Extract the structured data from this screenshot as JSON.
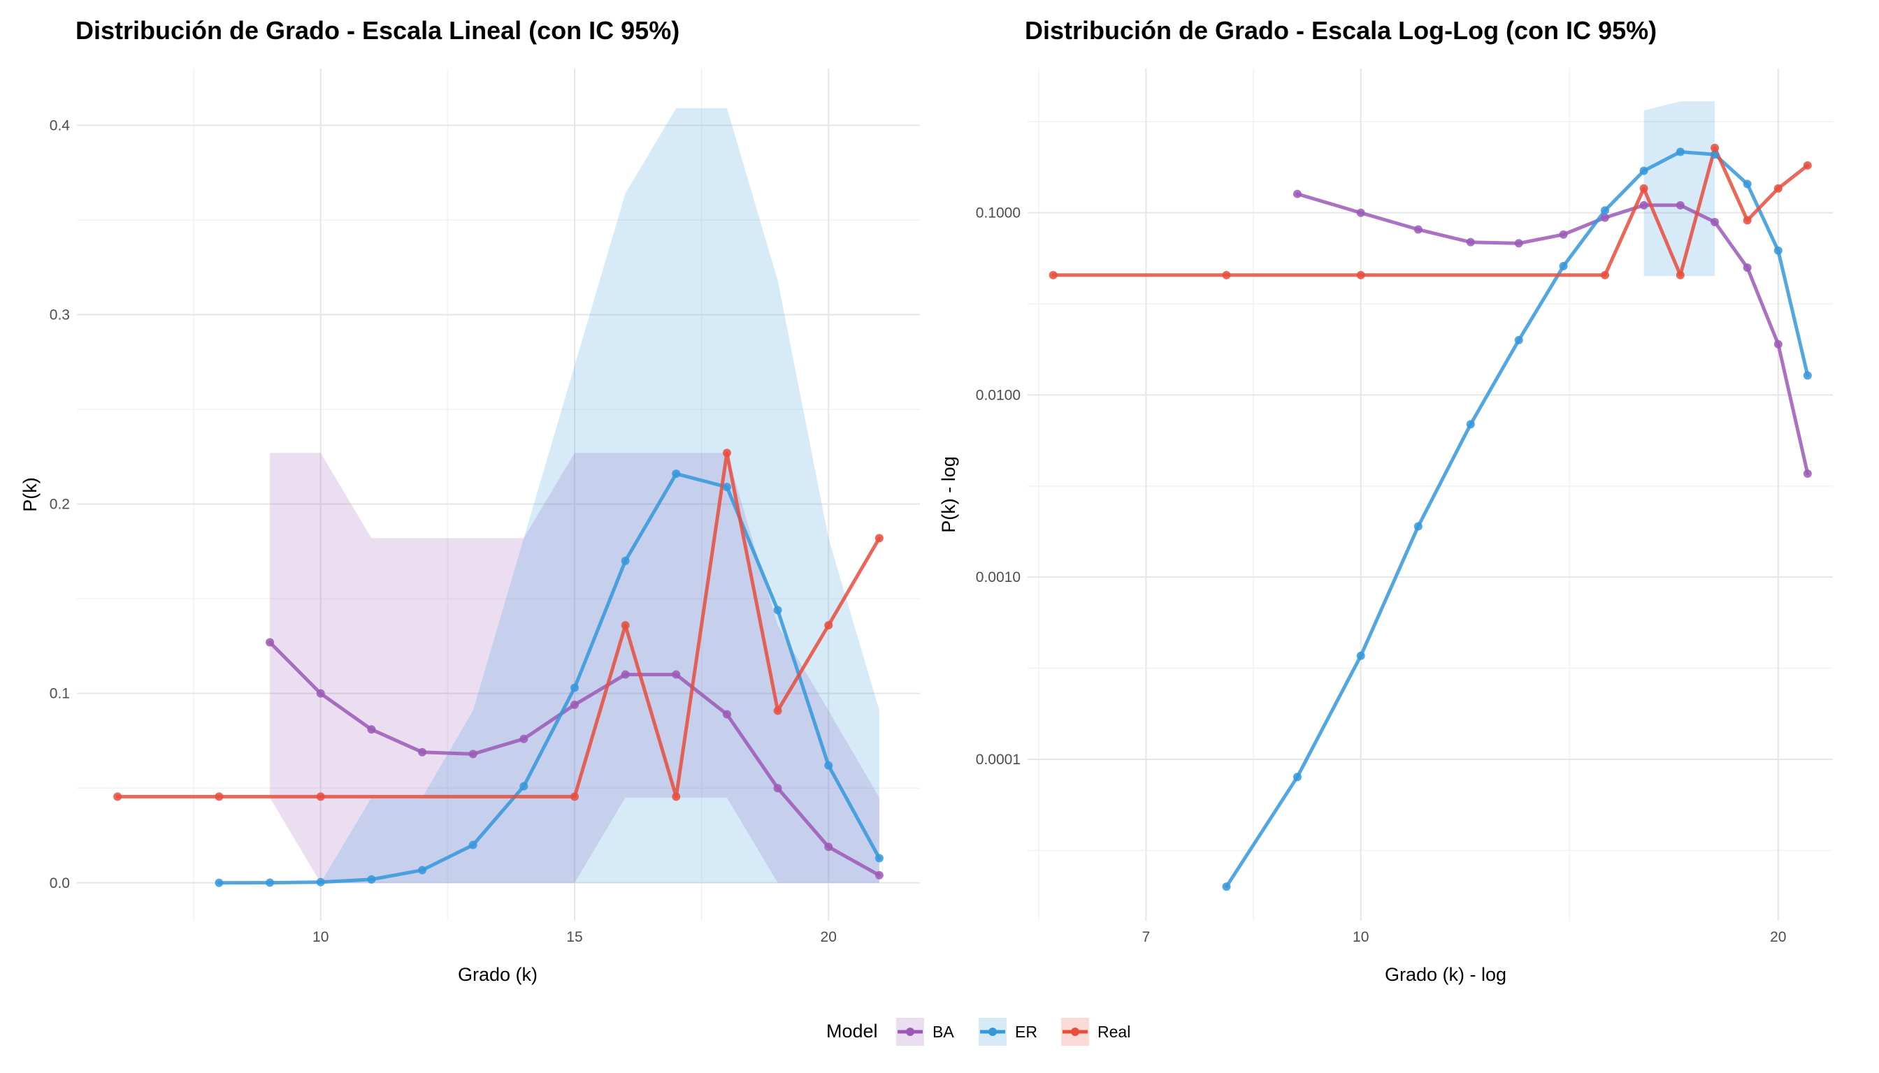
{
  "chart_data": [
    {
      "type": "line",
      "title": "Distribución de Grado - Escala Lineal (con IC 95%)",
      "xlabel": "Grado (k)",
      "ylabel": "P(k)",
      "xscale": "linear",
      "yscale": "linear",
      "xlim": [
        5.2,
        21.8
      ],
      "ylim": [
        -0.02,
        0.43
      ],
      "xticks": [
        10,
        15,
        20
      ],
      "xtick_labels": [
        "10",
        "15",
        "20"
      ],
      "yticks": [
        0.0,
        0.1,
        0.2,
        0.3,
        0.4
      ],
      "ytick_labels": [
        "0.0",
        "0.1",
        "0.2",
        "0.3",
        "0.4"
      ],
      "grid": true,
      "series": [
        {
          "name": "BA",
          "color": "#9b59b6",
          "x": [
            9,
            10,
            11,
            12,
            13,
            14,
            15,
            16,
            17,
            18,
            19,
            20,
            21
          ],
          "y": [
            0.127,
            0.1,
            0.081,
            0.069,
            0.068,
            0.076,
            0.094,
            0.11,
            0.11,
            0.089,
            0.05,
            0.019,
            0.004
          ],
          "ci_x": [
            9,
            10,
            11,
            12,
            13,
            14,
            15,
            16,
            17,
            18,
            19,
            20,
            21
          ],
          "ci_lower": [
            0.045,
            0.0,
            0.0,
            0.0,
            0.0,
            0.0,
            0.0,
            0.045,
            0.045,
            0.045,
            0.0,
            0.0,
            0.0
          ],
          "ci_upper": [
            0.227,
            0.227,
            0.182,
            0.182,
            0.182,
            0.182,
            0.227,
            0.227,
            0.227,
            0.227,
            0.136,
            0.091,
            0.045
          ]
        },
        {
          "name": "ER",
          "color": "#3498db",
          "x": [
            8,
            9,
            10,
            11,
            12,
            13,
            14,
            15,
            16,
            17,
            18,
            19,
            20,
            21
          ],
          "y": [
            2e-05,
            8e-05,
            0.00038,
            0.0018,
            0.0067,
            0.02,
            0.051,
            0.103,
            0.17,
            0.216,
            0.209,
            0.144,
            0.062,
            0.013
          ],
          "ci_x": [
            10,
            11,
            12,
            13,
            14,
            15,
            16,
            17,
            18,
            19,
            20,
            21
          ],
          "ci_lower": [
            0.0,
            0.0,
            0.0,
            0.0,
            0.0,
            0.0,
            0.0,
            0.0,
            0.0,
            0.0,
            0.0,
            0.0
          ],
          "ci_upper": [
            0.0,
            0.045,
            0.045,
            0.091,
            0.182,
            0.273,
            0.364,
            0.409,
            0.409,
            0.318,
            0.182,
            0.091
          ]
        },
        {
          "name": "Real",
          "color": "#e74c3c",
          "x": [
            6,
            8,
            10,
            15,
            16,
            17,
            18,
            19,
            20,
            21
          ],
          "y": [
            0.0455,
            0.0455,
            0.0455,
            0.0455,
            0.136,
            0.0455,
            0.227,
            0.0909,
            0.136,
            0.182
          ]
        }
      ]
    },
    {
      "type": "line",
      "title": "Distribución de Grado - Escala Log-Log (con IC 95%)",
      "xlabel": "Grado (k) - log",
      "ylabel": "P(k) - log",
      "xscale": "log10",
      "yscale": "log10",
      "xlim": [
        5.75,
        21.9
      ],
      "ylim": [
        1.3e-05,
        0.62
      ],
      "xticks": [
        7,
        10,
        20
      ],
      "xtick_labels": [
        "7",
        "10",
        "20"
      ],
      "yticks": [
        0.0001,
        0.001,
        0.01,
        0.1
      ],
      "ytick_labels": [
        "0.0001",
        "0.0010",
        "0.0100",
        "0.1000"
      ],
      "grid": true,
      "series": [
        {
          "name": "BA",
          "color": "#9b59b6",
          "x": [
            9,
            10,
            11,
            12,
            13,
            14,
            15,
            16,
            17,
            18,
            19,
            20,
            21
          ],
          "y": [
            0.127,
            0.1,
            0.081,
            0.069,
            0.068,
            0.076,
            0.094,
            0.11,
            0.11,
            0.089,
            0.05,
            0.019,
            0.0037
          ]
        },
        {
          "name": "ER",
          "color": "#3498db",
          "x": [
            8,
            9,
            10,
            11,
            12,
            13,
            14,
            15,
            16,
            17,
            18,
            19,
            20,
            21
          ],
          "y": [
            2e-05,
            8e-05,
            0.00037,
            0.0019,
            0.0069,
            0.02,
            0.051,
            0.103,
            0.17,
            0.216,
            0.209,
            0.144,
            0.062,
            0.0128
          ],
          "ci_x": [
            16,
            17,
            18
          ],
          "ci_lower": [
            0.045,
            0.045,
            0.045
          ],
          "ci_upper": [
            0.364,
            0.409,
            0.409
          ]
        },
        {
          "name": "Real",
          "color": "#e74c3c",
          "x": [
            6,
            8,
            10,
            15,
            16,
            17,
            18,
            19,
            20,
            21
          ],
          "y": [
            0.0455,
            0.0455,
            0.0455,
            0.0455,
            0.136,
            0.0455,
            0.227,
            0.0909,
            0.136,
            0.182
          ]
        }
      ]
    }
  ],
  "legend": {
    "title": "Model",
    "placement": "bottom",
    "items": [
      {
        "label": "BA",
        "color": "#9b59b6"
      },
      {
        "label": "ER",
        "color": "#3498db"
      },
      {
        "label": "Real",
        "color": "#e74c3c"
      }
    ]
  }
}
